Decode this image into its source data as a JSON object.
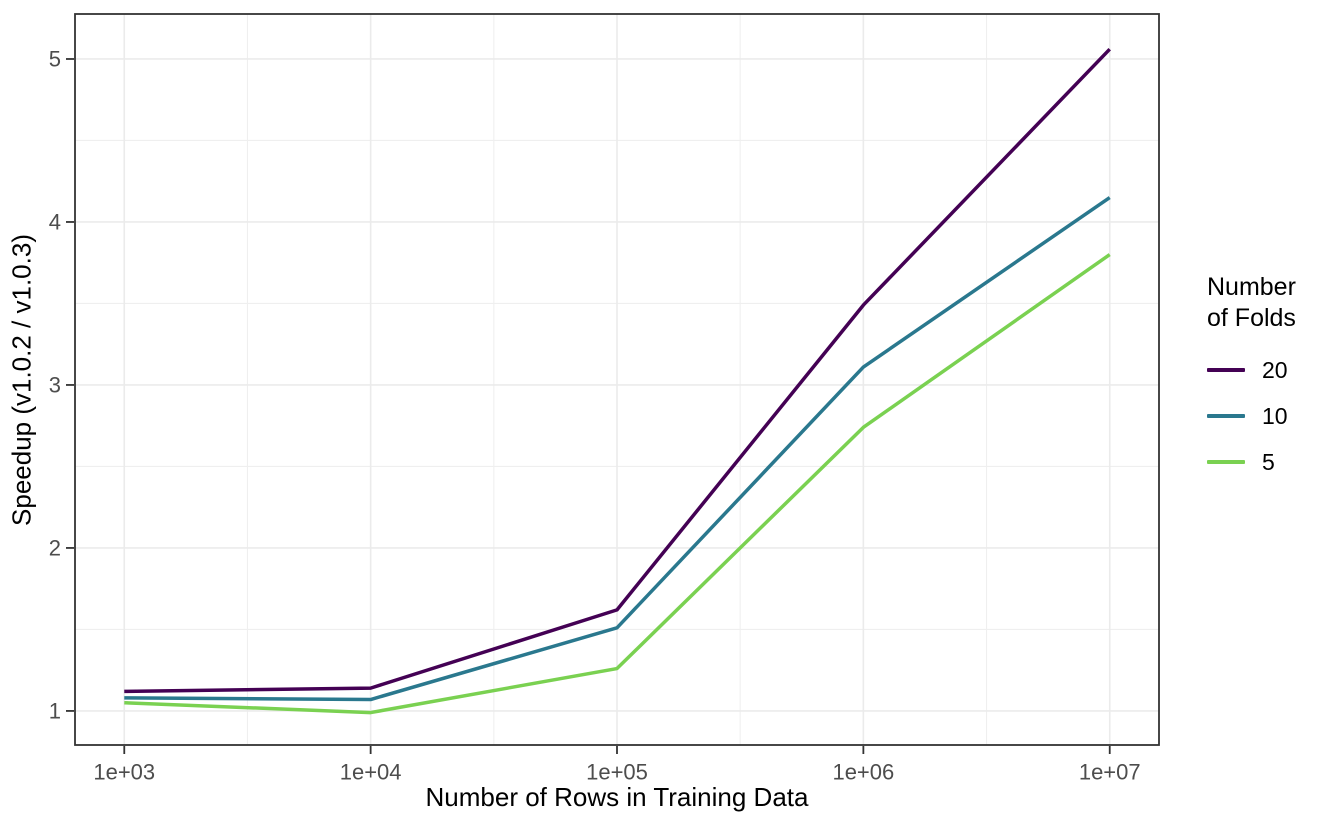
{
  "chart_data": {
    "type": "line",
    "title": "",
    "xlabel": "Number of Rows in Training Data",
    "ylabel": "Speedup (v1.0.2 / v1.0.3)",
    "x_scale": "log10",
    "x": [
      1000,
      10000,
      100000,
      1000000,
      10000000
    ],
    "x_tick_labels": [
      "1e+03",
      "1e+04",
      "1e+05",
      "1e+06",
      "1e+07"
    ],
    "y_ticks": [
      1,
      2,
      3,
      4,
      5
    ],
    "y_tick_labels": [
      "1",
      "2",
      "3",
      "4",
      "5"
    ],
    "x_minor_logs": [
      3.5,
      4.5,
      5.5,
      6.5
    ],
    "y_minor_ticks": [
      1.5,
      2.5,
      3.5,
      4.5
    ],
    "xlim_log10": [
      2.8,
      7.2
    ],
    "ylim": [
      0.791,
      5.276
    ],
    "grid": true,
    "legend_title": "Number\nof Folds",
    "legend_position": "right",
    "series": [
      {
        "name": "20",
        "color": "#440154",
        "values": [
          1.12,
          1.14,
          1.62,
          3.49,
          5.06
        ]
      },
      {
        "name": "10",
        "color": "#2A788E",
        "values": [
          1.08,
          1.07,
          1.51,
          3.11,
          4.15
        ]
      },
      {
        "name": "5",
        "color": "#7AD151",
        "values": [
          1.05,
          0.99,
          1.26,
          2.74,
          3.8
        ]
      }
    ],
    "colors": {
      "background": "#FFFFFF",
      "panel_border": "#333333",
      "grid_major": "#EBEBEB",
      "grid_minor": "#EFEFEF",
      "tick_mark": "#333333",
      "tick_label": "#4D4D4D",
      "axis_title": "#000000"
    }
  }
}
